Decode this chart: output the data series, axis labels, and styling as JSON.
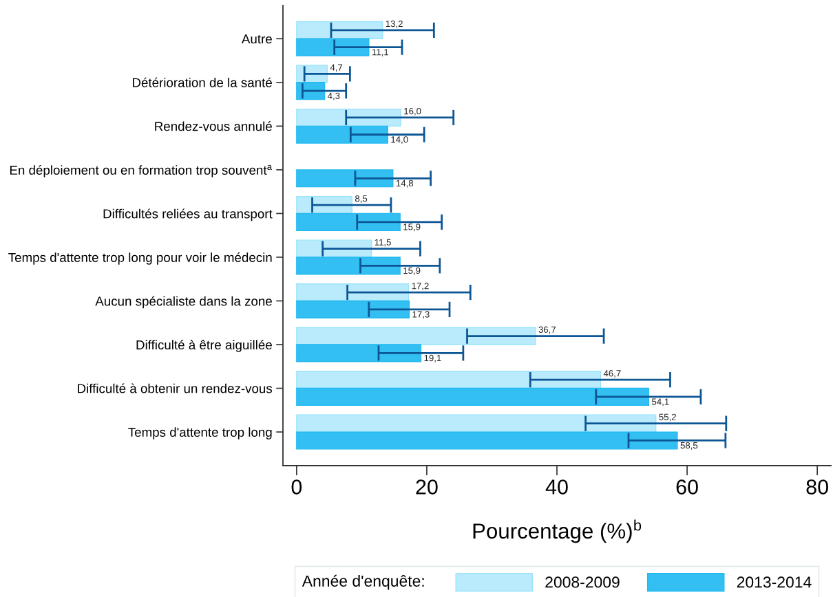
{
  "chart_data": {
    "type": "bar",
    "orientation": "horizontal",
    "categories": [
      "Autre",
      "Détérioration de la santé",
      "Rendez-vous annulé",
      "En déploiement ou en formation trop souvent$^{a}$",
      "Difficultés reliées au transport",
      "Temps d'attente trop long pour voir le médecin",
      "Aucun spécialiste dans la zone",
      "Difficulté à être aiguillée",
      "Difficulté à obtenir un rendez-vous",
      "Temps d'attente trop long"
    ],
    "series": [
      {
        "name": "2008-2009",
        "color": "#b9ebfc",
        "values": [
          13.2,
          4.7,
          16.0,
          null,
          8.5,
          11.5,
          17.2,
          36.7,
          46.7,
          55.2
        ],
        "value_labels": [
          "13,2",
          "4,7",
          "16,0",
          null,
          "8,5",
          "11,5",
          "17,2",
          "36,7",
          "46,7",
          "55,2"
        ],
        "errors": [
          [
            5.3,
            21.1
          ],
          [
            1.2,
            8.2
          ],
          [
            7.6,
            24.1
          ],
          null,
          [
            2.4,
            14.5
          ],
          [
            4.0,
            19.0
          ],
          [
            7.8,
            26.7
          ],
          [
            26.2,
            47.2
          ],
          [
            35.9,
            57.4
          ],
          [
            44.4,
            66.0
          ]
        ]
      },
      {
        "name": "2013-2014",
        "color": "#33bff2",
        "values": [
          11.1,
          4.3,
          14.0,
          14.8,
          15.9,
          15.9,
          17.3,
          19.1,
          54.1,
          58.5
        ],
        "value_labels": [
          "11,1",
          "4,3",
          "14,0",
          "14,8",
          "15,9",
          "15,9",
          "17,3",
          "19,1",
          "54,1",
          "58,5"
        ],
        "errors": [
          [
            5.8,
            16.2
          ],
          [
            0.9,
            7.6
          ],
          [
            8.3,
            19.6
          ],
          [
            9.0,
            20.6
          ],
          [
            9.3,
            22.3
          ],
          [
            9.8,
            22.0
          ],
          [
            11.1,
            23.5
          ],
          [
            12.6,
            25.6
          ],
          [
            46.0,
            62.1
          ],
          [
            51.0,
            65.9
          ]
        ]
      }
    ],
    "xlabel": "Pourcentage (%)$^{b}$",
    "legend_title": "Année d'enquête:",
    "xlim": [
      -2.1,
      82.1
    ],
    "xticks": [
      0,
      20,
      40,
      60,
      80
    ],
    "legend": "bottom",
    "grid": false
  }
}
